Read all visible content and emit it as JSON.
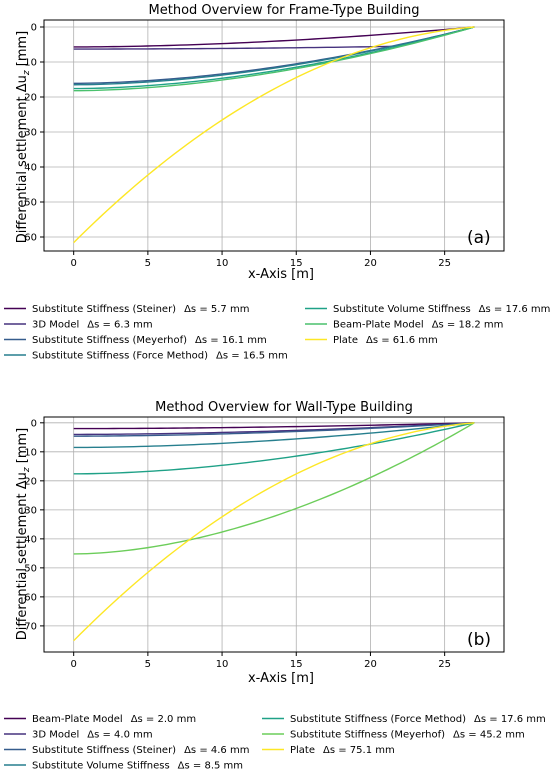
{
  "chart_data": [
    {
      "type": "line",
      "title": "Method Overview for Frame-Type Building",
      "xlabel": "x-Axis [m]",
      "ylabel_prefix": "Differential settlement Δu",
      "ylabel_sub": "z",
      "ylabel_suffix": " [mm]",
      "panel_label": "(a)",
      "xlim": [
        -2,
        29
      ],
      "ylim": [
        64,
        -2
      ],
      "y_inverted": true,
      "grid": true,
      "x_ticks": [
        "0",
        "5",
        "10",
        "15",
        "20",
        "25"
      ],
      "y_ticks": [
        "0",
        "10",
        "20",
        "30",
        "40",
        "50",
        "60"
      ],
      "x_tick_values": [
        0,
        5,
        10,
        15,
        20,
        25
      ],
      "y_tick_values": [
        0,
        10,
        20,
        30,
        40,
        50,
        60
      ],
      "legend_placement": "below",
      "legend_ds_prefix": "Δs = ",
      "legend_unit": " mm",
      "series": [
        {
          "name": "Substitute Stiffness (Steiner)",
          "ds": "5.7",
          "color": "#440154",
          "profile": "smooth",
          "values": [
            {
              "x": 0,
              "y": 5.7
            },
            {
              "x": 27,
              "y": 0
            }
          ]
        },
        {
          "name": "3D Model",
          "ds": "6.3",
          "color": "#46327e",
          "profile": "flat",
          "values": [
            {
              "x": 0,
              "y": 6.3
            },
            {
              "x": 22,
              "y": 5.5
            },
            {
              "x": 27,
              "y": 0
            }
          ]
        },
        {
          "name": "Substitute Stiffness (Meyerhof)",
          "ds": "16.1",
          "color": "#365c8d",
          "profile": "smooth",
          "values": [
            {
              "x": 0,
              "y": 16.1
            },
            {
              "x": 27,
              "y": 0
            }
          ]
        },
        {
          "name": "Substitute Stiffness (Force Method)",
          "ds": "16.5",
          "color": "#277f8e",
          "profile": "smooth",
          "values": [
            {
              "x": 0,
              "y": 16.5
            },
            {
              "x": 27,
              "y": 0
            }
          ]
        },
        {
          "name": "Substitute Volume Stiffness",
          "ds": "17.6",
          "color": "#1fa187",
          "profile": "smooth",
          "values": [
            {
              "x": 0,
              "y": 17.6
            },
            {
              "x": 27,
              "y": 0
            }
          ]
        },
        {
          "name": "Beam-Plate Model",
          "ds": "18.2",
          "color": "#4ac16d",
          "profile": "smooth",
          "values": [
            {
              "x": 0,
              "y": 18.2
            },
            {
              "x": 27,
              "y": 0
            }
          ]
        },
        {
          "name": "Plate",
          "ds": "61.6",
          "color": "#fde725",
          "profile": "bowl",
          "values": [
            {
              "x": 0,
              "y": 61.6
            },
            {
              "x": 27,
              "y": 0
            }
          ]
        }
      ]
    },
    {
      "type": "line",
      "title": "Method Overview for Wall-Type Building",
      "xlabel": "x-Axis [m]",
      "ylabel_prefix": "Differential settlement Δu",
      "ylabel_sub": "z",
      "ylabel_suffix": " [mm]",
      "panel_label": "(b)",
      "xlim": [
        -2,
        29
      ],
      "ylim": [
        79,
        -2
      ],
      "y_inverted": true,
      "grid": true,
      "x_ticks": [
        "0",
        "5",
        "10",
        "15",
        "20",
        "25"
      ],
      "y_ticks": [
        "0",
        "10",
        "20",
        "30",
        "40",
        "50",
        "60",
        "70"
      ],
      "x_tick_values": [
        0,
        5,
        10,
        15,
        20,
        25
      ],
      "y_tick_values": [
        0,
        10,
        20,
        30,
        40,
        50,
        60,
        70
      ],
      "legend_placement": "below",
      "legend_ds_prefix": "Δs = ",
      "legend_unit": " mm",
      "series": [
        {
          "name": "Beam-Plate Model",
          "ds": "2.0",
          "color": "#440154",
          "profile": "smooth",
          "values": [
            {
              "x": 0,
              "y": 2.0
            },
            {
              "x": 27,
              "y": 0
            }
          ]
        },
        {
          "name": "3D Model",
          "ds": "4.0",
          "color": "#46327e",
          "profile": "smooth",
          "values": [
            {
              "x": 0,
              "y": 4.0
            },
            {
              "x": 27,
              "y": 0
            }
          ]
        },
        {
          "name": "Substitute Stiffness (Steiner)",
          "ds": "4.6",
          "color": "#365c8d",
          "profile": "smooth",
          "values": [
            {
              "x": 0,
              "y": 4.6
            },
            {
              "x": 27,
              "y": 0
            }
          ]
        },
        {
          "name": "Substitute Volume Stiffness",
          "ds": "8.5",
          "color": "#277f8e",
          "profile": "smooth",
          "values": [
            {
              "x": 0,
              "y": 8.5
            },
            {
              "x": 27,
              "y": 0
            }
          ]
        },
        {
          "name": "Substitute Stiffness (Force Method)",
          "ds": "17.6",
          "color": "#1fa187",
          "profile": "smooth",
          "values": [
            {
              "x": 0,
              "y": 17.6
            },
            {
              "x": 27,
              "y": 0
            }
          ]
        },
        {
          "name": "Substitute Stiffness (Meyerhof)",
          "ds": "45.2",
          "color": "#6ccd5a",
          "profile": "smooth",
          "values": [
            {
              "x": 0,
              "y": 45.2
            },
            {
              "x": 27,
              "y": 0
            }
          ]
        },
        {
          "name": "Plate",
          "ds": "75.1",
          "color": "#fde725",
          "profile": "bowl",
          "values": [
            {
              "x": 0,
              "y": 75.1
            },
            {
              "x": 27,
              "y": 0
            }
          ]
        }
      ]
    }
  ]
}
